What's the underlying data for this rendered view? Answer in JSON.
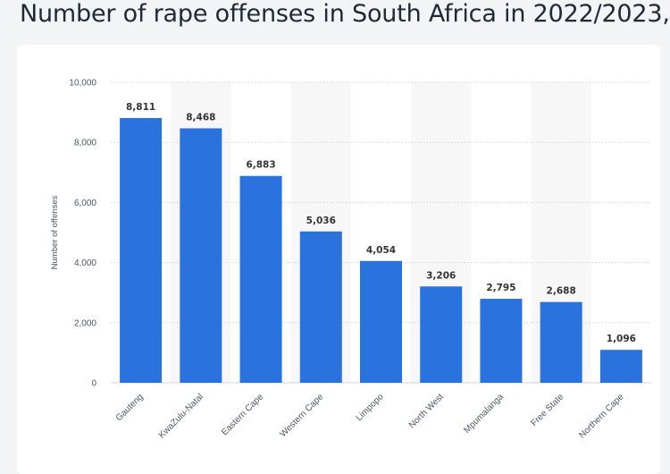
{
  "page": {
    "title": "Number of rape offenses in South Africa in 2022/2023,"
  },
  "colors": {
    "bar": "#2a72de",
    "band": "#f7f7f8",
    "grid": "#d1d5db"
  },
  "chart_data": {
    "type": "bar",
    "title": "Number of rape offenses in South Africa in 2022/2023,",
    "xlabel": "",
    "ylabel": "Number of offenses",
    "categories": [
      "Gauteng",
      "KwaZulu-Natal",
      "Eastern Cape",
      "Western Cape",
      "Limpopo",
      "North West",
      "Mpumalanga",
      "Free State",
      "Northern Cape"
    ],
    "values": [
      8811,
      8468,
      6883,
      5036,
      4054,
      3206,
      2795,
      2688,
      1096
    ],
    "value_labels": [
      "8,811",
      "8,468",
      "6,883",
      "5,036",
      "4,054",
      "3,206",
      "2,795",
      "2,688",
      "1,096"
    ],
    "yticks": [
      0,
      2000,
      4000,
      6000,
      8000,
      10000
    ],
    "ytick_labels": [
      "0",
      "2,000",
      "4,000",
      "6,000",
      "8,000",
      "10,000"
    ],
    "ylim": [
      0,
      10000
    ],
    "grid": true,
    "legend": "none"
  }
}
